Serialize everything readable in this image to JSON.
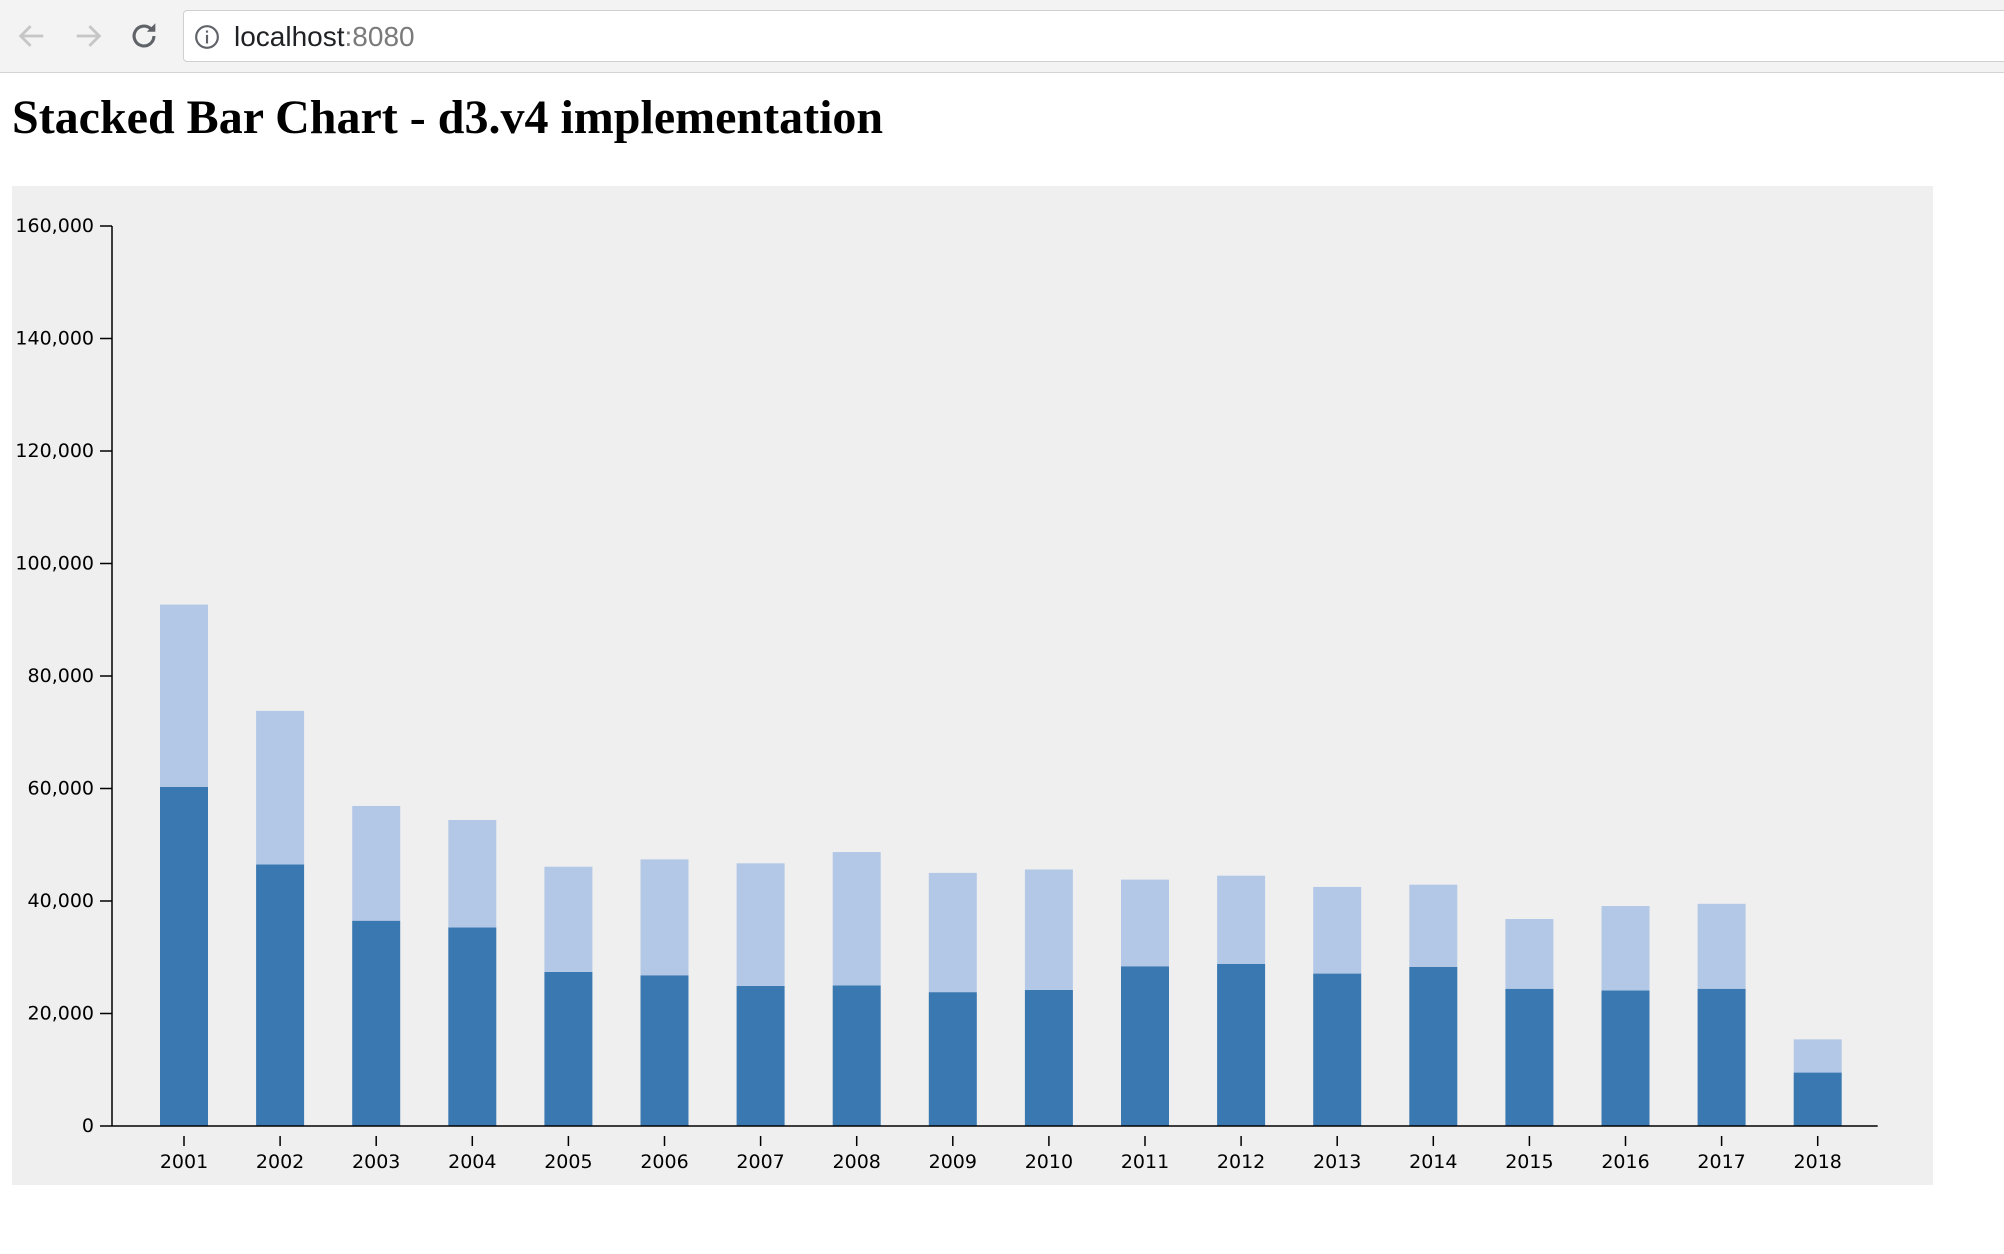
{
  "browser": {
    "url_host": "localhost",
    "url_port": ":8080",
    "back_icon": "arrow-left-icon",
    "forward_icon": "arrow-right-icon",
    "reload_icon": "reload-icon",
    "info_icon": "info-circle-icon"
  },
  "page": {
    "title": "Stacked Bar Chart - d3.v4 implementation"
  },
  "chart_data": {
    "type": "bar",
    "stacked": true,
    "title": "",
    "xlabel": "",
    "ylabel": "",
    "ylim": [
      0,
      160000
    ],
    "y_ticks": [
      0,
      20000,
      40000,
      60000,
      80000,
      100000,
      120000,
      140000,
      160000
    ],
    "y_tick_labels": [
      "0",
      "20,000",
      "40,000",
      "60,000",
      "80,000",
      "100,000",
      "120,000",
      "140,000",
      "160,000"
    ],
    "categories": [
      "2001",
      "2002",
      "2003",
      "2004",
      "2005",
      "2006",
      "2007",
      "2008",
      "2009",
      "2010",
      "2011",
      "2012",
      "2013",
      "2014",
      "2015",
      "2016",
      "2017",
      "2018"
    ],
    "series": [
      {
        "color": "#3a78b1",
        "values": [
          60300,
          46500,
          36500,
          35300,
          27400,
          26800,
          24900,
          25000,
          23800,
          24200,
          28400,
          28800,
          27100,
          28300,
          24400,
          24100,
          24400,
          9500
        ]
      },
      {
        "color": "#b3c8e7",
        "values": [
          32400,
          27300,
          20400,
          19100,
          18700,
          20600,
          21800,
          23700,
          21200,
          21400,
          15400,
          15700,
          15400,
          14600,
          12400,
          15000,
          15100,
          5900
        ]
      }
    ],
    "background": "#efefef",
    "grid": false,
    "legend": "none"
  }
}
